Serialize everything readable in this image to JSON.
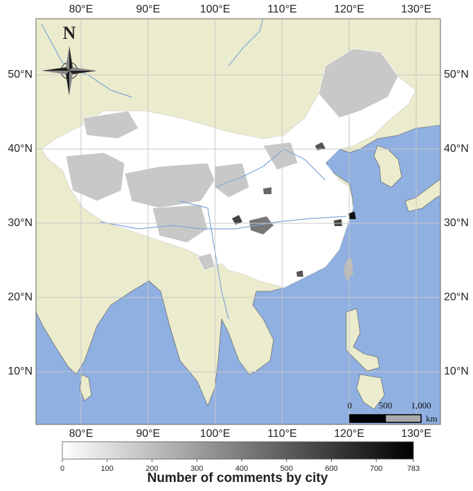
{
  "map": {
    "north_label": "N",
    "lon_ticks": [
      {
        "value": 80,
        "label": "80°E"
      },
      {
        "value": 90,
        "label": "90°E"
      },
      {
        "value": 100,
        "label": "100°E"
      },
      {
        "value": 110,
        "label": "110°E"
      },
      {
        "value": 120,
        "label": "120°E"
      },
      {
        "value": 130,
        "label": "130°E"
      }
    ],
    "lat_ticks": [
      {
        "value": 50,
        "label": "50°N"
      },
      {
        "value": 40,
        "label": "40°N"
      },
      {
        "value": 30,
        "label": "30°N"
      },
      {
        "value": 20,
        "label": "20°N"
      },
      {
        "value": 10,
        "label": "10°N"
      }
    ],
    "scale_bar": {
      "ticks": [
        {
          "value": 0,
          "label": "0"
        },
        {
          "value": 500,
          "label": "500"
        },
        {
          "value": 1000,
          "label": "1,000"
        }
      ],
      "unit": "km"
    },
    "colorbar": {
      "title": "Number of comments by city",
      "lim": [
        0,
        783
      ],
      "ticks": [
        0,
        100,
        200,
        300,
        400,
        500,
        600,
        700,
        783
      ]
    }
  }
}
